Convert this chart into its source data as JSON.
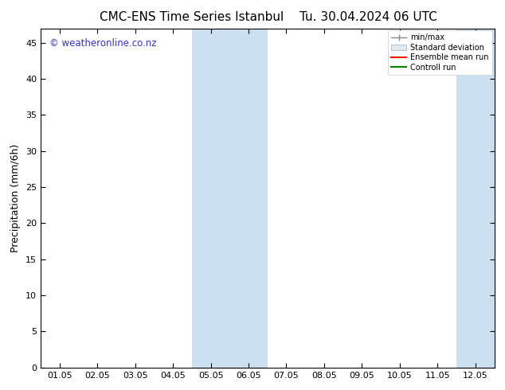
{
  "title_left": "CMC-ENS Time Series Istanbul",
  "title_right": "Tu. 30.04.2024 06 UTC",
  "ylabel": "Precipitation (mm/6h)",
  "watermark": "© weatheronline.co.nz",
  "xtick_labels": [
    "01.05",
    "02.05",
    "03.05",
    "04.05",
    "05.05",
    "06.05",
    "07.05",
    "08.05",
    "09.05",
    "10.05",
    "11.05",
    "12.05"
  ],
  "xtick_positions": [
    0,
    1,
    2,
    3,
    4,
    5,
    6,
    7,
    8,
    9,
    10,
    11
  ],
  "ylim": [
    0,
    47
  ],
  "yticks": [
    0,
    5,
    10,
    15,
    20,
    25,
    30,
    35,
    40,
    45
  ],
  "xlim": [
    -0.5,
    11.5
  ],
  "shaded_regions": [
    {
      "xmin": 3.5,
      "xmax": 5.5
    },
    {
      "xmin": 10.5,
      "xmax": 11.5
    }
  ],
  "shade_color": "#cce0f0",
  "shade_alpha": 1.0,
  "legend_labels": [
    "min/max",
    "Standard deviation",
    "Ensemble mean run",
    "Controll run"
  ],
  "legend_line_colors": [
    "#888888",
    "#cccccc",
    "#ff0000",
    "#008000"
  ],
  "background_color": "#ffffff",
  "plot_bg_color": "#ffffff",
  "border_color": "#000000",
  "title_fontsize": 11,
  "tick_fontsize": 8,
  "ylabel_fontsize": 9,
  "watermark_color": "#3333cc",
  "watermark_fontsize": 8.5
}
